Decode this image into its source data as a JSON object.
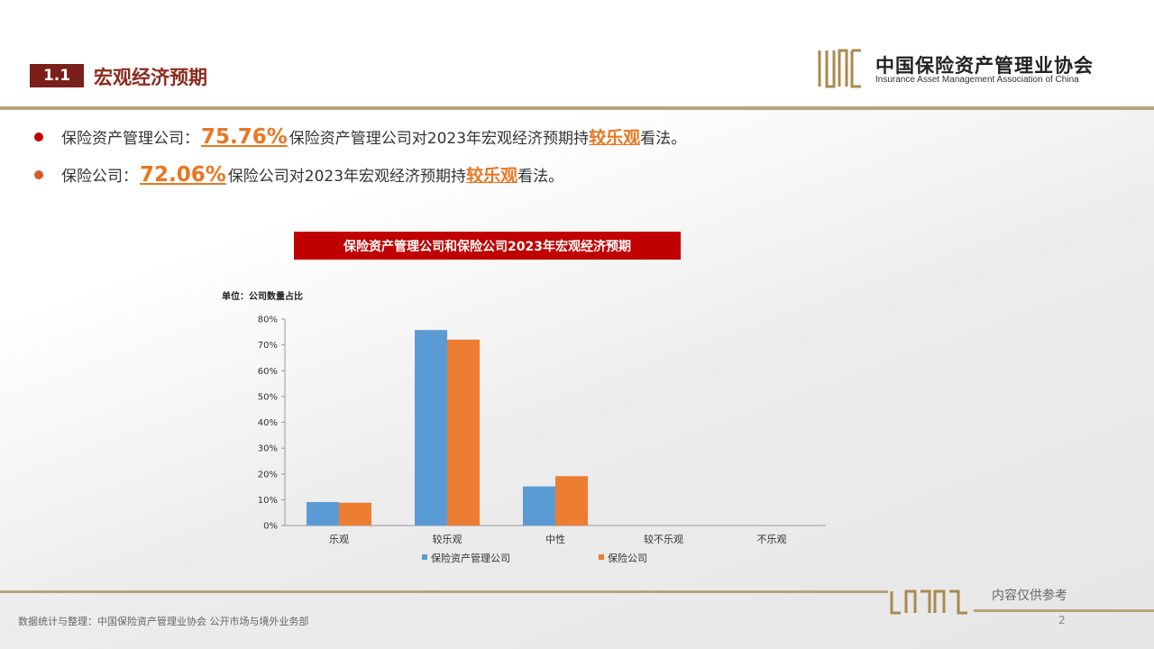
{
  "header": {
    "section_number": "1.1",
    "section_title": "宏观经济预期",
    "logo_cn": "中国保险资产管理业协会",
    "logo_en": "Insurance Asset Management Association of China"
  },
  "bullets": [
    {
      "prefix": "保险资产管理公司：",
      "pct": "75.76%",
      "text": "保险资产管理公司对2023年宏观经济预期持",
      "highlight": "较乐观",
      "suffix": "看法。",
      "dot_color": "#c00000"
    },
    {
      "prefix": "保险公司：",
      "pct": "72.06%",
      "text": "保险公司对2023年宏观经济预期持",
      "highlight": "较乐观",
      "suffix": "看法。",
      "dot_color": "#d75b25"
    }
  ],
  "chart_title": "保险资产管理公司和保险公司2023年宏观经济预期",
  "chart_data": {
    "type": "bar",
    "unit_label": "单位：公司数量占比",
    "categories": [
      "乐观",
      "较乐观",
      "中性",
      "较不乐观",
      "不乐观"
    ],
    "series": [
      {
        "name": "保险资产管理公司",
        "color": "#5b9bd5",
        "values": [
          9.09,
          75.76,
          15.15,
          0,
          0
        ]
      },
      {
        "name": "保险公司",
        "color": "#ed7d31",
        "values": [
          8.82,
          72.06,
          19.12,
          0,
          0
        ]
      }
    ],
    "ylim": [
      0,
      80
    ],
    "yticks": [
      "0%",
      "10%",
      "20%",
      "30%",
      "40%",
      "50%",
      "60%",
      "70%",
      "80%"
    ],
    "legend": "bottom"
  },
  "footer": {
    "reference": "内容仅供参考",
    "source": "数据统计与整理：中国保险资产管理业协会 公开市场与境外业务部",
    "page": "2"
  }
}
